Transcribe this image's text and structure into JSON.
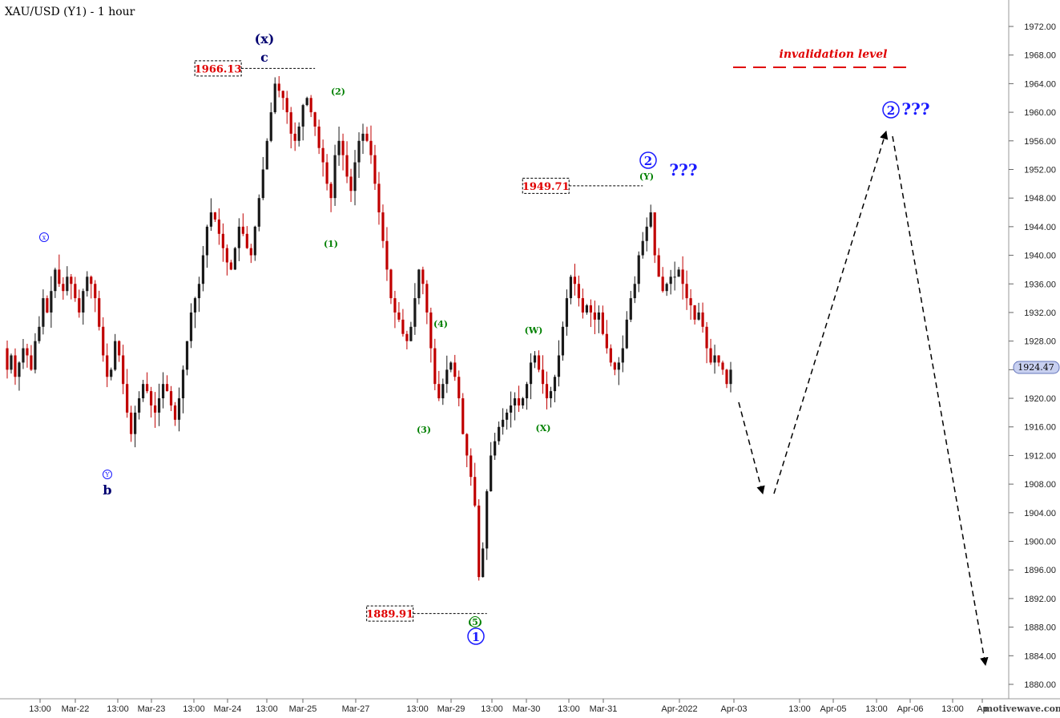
{
  "chart_data": {
    "type": "candlestick",
    "title": "XAU/USD (Y1) - 1 hour",
    "ylim": [
      1878,
      1975
    ],
    "y_ticks": [
      1880,
      1884,
      1888,
      1892,
      1896,
      1900,
      1904,
      1908,
      1912,
      1916,
      1920,
      1924,
      1928,
      1932,
      1936,
      1940,
      1944,
      1948,
      1952,
      1956,
      1960,
      1964,
      1968,
      1972
    ],
    "x_ticks": [
      "13:00",
      "Mar-22",
      "13:00",
      "Mar-23",
      "13:00",
      "Mar-24",
      "13:00",
      "Mar-25",
      "Mar-27",
      "13:00",
      "Mar-29",
      "13:00",
      "Mar-30",
      "13:00",
      "Mar-31",
      "Apr-2022",
      "Apr-03",
      "13:00",
      "Apr-05",
      "13:00",
      "Apr-06",
      "13:00",
      "Ap"
    ],
    "last_price": "1924.47",
    "price_path": [
      1927,
      1924,
      1926,
      1923,
      1925,
      1927,
      1926,
      1924,
      1928,
      1930,
      1934,
      1932,
      1935,
      1938,
      1936,
      1935,
      1937,
      1936,
      1934,
      1932,
      1935,
      1937,
      1936,
      1934,
      1930,
      1926,
      1923,
      1924,
      1928,
      1926,
      1922,
      1918,
      1915,
      1918,
      1920,
      1922,
      1921,
      1919,
      1918,
      1920,
      1922,
      1921,
      1919,
      1917,
      1920,
      1924,
      1928,
      1932,
      1934,
      1936,
      1940,
      1944,
      1946,
      1945,
      1943,
      1941,
      1939,
      1938,
      1941,
      1944,
      1943,
      1941,
      1940,
      1944,
      1948,
      1952,
      1956,
      1960,
      1964,
      1963,
      1962,
      1960,
      1957,
      1956,
      1958,
      1961,
      1962,
      1960,
      1958,
      1955,
      1953,
      1950,
      1948,
      1954,
      1956,
      1954,
      1951,
      1949,
      1953,
      1956,
      1957,
      1956,
      1954,
      1950,
      1946,
      1942,
      1938,
      1934,
      1932,
      1931,
      1929,
      1928,
      1930,
      1934,
      1938,
      1936,
      1932,
      1927,
      1922,
      1920,
      1922,
      1924,
      1925,
      1923,
      1920,
      1915,
      1912,
      1909,
      1905,
      1895,
      1899,
      1907,
      1912,
      1914,
      1916,
      1917,
      1918,
      1919,
      1920,
      1919,
      1920,
      1922,
      1925,
      1926,
      1924,
      1922,
      1920,
      1921,
      1923,
      1926,
      1930,
      1934,
      1937,
      1936,
      1934,
      1932,
      1933,
      1932,
      1931,
      1932,
      1929,
      1927,
      1925,
      1924,
      1925,
      1927,
      1931,
      1934,
      1936,
      1940,
      1942,
      1944,
      1946,
      1940,
      1937,
      1935,
      1936,
      1937,
      1937,
      1938,
      1936,
      1934,
      1933,
      1931,
      1932,
      1930,
      1927,
      1925,
      1926,
      1925,
      1924,
      1922,
      1924
    ],
    "y_boxes": [
      {
        "text": "1966.13",
        "value": 1966.13,
        "idx": 78,
        "color": "#e00000"
      },
      {
        "text": "1949.71",
        "value": 1949.71,
        "idx": 160,
        "color": "#e00000"
      },
      {
        "text": "1889.91",
        "value": 1889.91,
        "idx": 121,
        "color": "#e00000"
      }
    ],
    "projection": [
      {
        "x": 1924,
        "y": 1921
      },
      {
        "x": 1952,
        "y": 1907
      },
      {
        "x": 1966,
        "y": 1907
      },
      {
        "x": 1106,
        "y": 1957
      },
      {
        "x": 1114,
        "y": 1957
      },
      {
        "x": 1230,
        "y": 1883
      }
    ]
  },
  "annotations": {
    "x_wave_label": "(x)",
    "c_label": "c",
    "b_label": "b",
    "circled_x": "x",
    "circled_y": "Y",
    "minor_1": "(1)",
    "minor_2": "(2)",
    "minor_3": "(3)",
    "minor_4": "(4)",
    "minor_5": "(5)",
    "minor_w": "(W)",
    "minor_x": "(X)",
    "minor_y": "(Y)",
    "wave1": "1",
    "wave2_current": "2",
    "wave2_projected": "2",
    "qmarks1": "???",
    "qmarks2": "???",
    "invalidation_text": "invalidation  level",
    "watermark": "motivewave.com"
  },
  "colors": {
    "up": "#1a1a1a",
    "down": "#c00000",
    "wave_blue": "#1a1aff",
    "minor_green": "#008000",
    "dark_navy": "#000070",
    "invalidation_red": "#e00000"
  }
}
